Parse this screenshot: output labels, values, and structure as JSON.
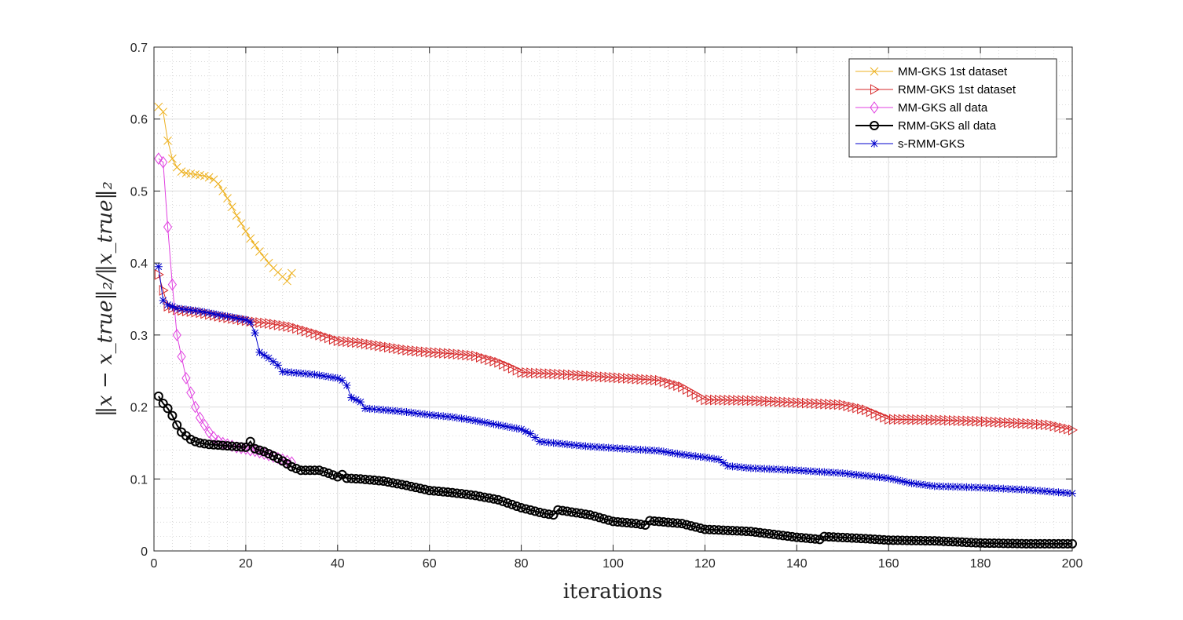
{
  "chart_data": {
    "type": "line",
    "title": "",
    "xlabel": "iterations",
    "ylabel": "‖x − x_true‖₂/‖x_true‖₂",
    "xlim": [
      0,
      200
    ],
    "ylim": [
      0,
      0.7
    ],
    "xticks": [
      "0",
      "20",
      "40",
      "60",
      "80",
      "100",
      "120",
      "140",
      "160",
      "180",
      "200"
    ],
    "yticks": [
      "0",
      "0.1",
      "0.2",
      "0.3",
      "0.4",
      "0.5",
      "0.6",
      "0.7"
    ],
    "grid": true,
    "minor_grid": true,
    "legend_position": "top-right",
    "series": [
      {
        "name": "MM-GKS 1st dataset",
        "color": "#EDB120",
        "marker": "x",
        "points": [
          [
            1,
            0.617
          ],
          [
            2,
            0.61
          ],
          [
            3,
            0.57
          ],
          [
            4,
            0.545
          ],
          [
            5,
            0.533
          ],
          [
            6,
            0.527
          ],
          [
            7,
            0.525
          ],
          [
            8,
            0.524
          ],
          [
            9,
            0.523
          ],
          [
            10,
            0.522
          ],
          [
            11,
            0.521
          ],
          [
            12,
            0.519
          ],
          [
            13,
            0.516
          ],
          [
            14,
            0.51
          ],
          [
            15,
            0.5
          ],
          [
            16,
            0.49
          ],
          [
            17,
            0.478
          ],
          [
            18,
            0.466
          ],
          [
            19,
            0.455
          ],
          [
            20,
            0.444
          ],
          [
            21,
            0.434
          ],
          [
            22,
            0.425
          ],
          [
            23,
            0.416
          ],
          [
            24,
            0.408
          ],
          [
            25,
            0.4
          ],
          [
            26,
            0.393
          ],
          [
            27,
            0.387
          ],
          [
            28,
            0.381
          ],
          [
            29,
            0.375
          ],
          [
            30,
            0.386
          ]
        ]
      },
      {
        "name": "RMM-GKS 1st dataset",
        "color": "#D62728",
        "marker": "triangle-right",
        "points": [
          [
            1,
            0.384
          ],
          [
            3,
            0.34
          ],
          [
            5,
            0.335
          ],
          [
            10,
            0.331
          ],
          [
            15,
            0.325
          ],
          [
            20,
            0.32
          ],
          [
            22,
            0.318
          ],
          [
            25,
            0.316
          ],
          [
            28,
            0.313
          ],
          [
            30,
            0.311
          ],
          [
            35,
            0.302
          ],
          [
            40,
            0.292
          ],
          [
            45,
            0.289
          ],
          [
            50,
            0.284
          ],
          [
            55,
            0.279
          ],
          [
            60,
            0.276
          ],
          [
            65,
            0.274
          ],
          [
            70,
            0.271
          ],
          [
            75,
            0.262
          ],
          [
            78,
            0.254
          ],
          [
            80,
            0.248
          ],
          [
            90,
            0.245
          ],
          [
            100,
            0.241
          ],
          [
            110,
            0.237
          ],
          [
            115,
            0.228
          ],
          [
            120,
            0.21
          ],
          [
            130,
            0.209
          ],
          [
            140,
            0.206
          ],
          [
            150,
            0.203
          ],
          [
            155,
            0.196
          ],
          [
            160,
            0.183
          ],
          [
            170,
            0.182
          ],
          [
            180,
            0.18
          ],
          [
            190,
            0.177
          ],
          [
            195,
            0.175
          ],
          [
            200,
            0.168
          ]
        ]
      },
      {
        "name": "MM-GKS all data",
        "color": "#E040E0",
        "marker": "diamond",
        "points": [
          [
            1,
            0.545
          ],
          [
            2,
            0.54
          ],
          [
            3,
            0.45
          ],
          [
            4,
            0.37
          ],
          [
            5,
            0.3
          ],
          [
            6,
            0.27
          ],
          [
            7,
            0.24
          ],
          [
            8,
            0.22
          ],
          [
            9,
            0.2
          ],
          [
            10,
            0.185
          ],
          [
            11,
            0.175
          ],
          [
            12,
            0.165
          ],
          [
            13,
            0.158
          ],
          [
            14,
            0.153
          ],
          [
            15,
            0.15
          ],
          [
            16,
            0.148
          ],
          [
            17,
            0.146
          ],
          [
            18,
            0.144
          ],
          [
            19,
            0.143
          ],
          [
            20,
            0.142
          ],
          [
            21,
            0.14
          ],
          [
            22,
            0.139
          ],
          [
            23,
            0.137
          ],
          [
            24,
            0.135
          ],
          [
            25,
            0.133
          ],
          [
            26,
            0.131
          ],
          [
            27,
            0.129
          ],
          [
            28,
            0.127
          ],
          [
            29,
            0.125
          ],
          [
            30,
            0.123
          ]
        ]
      },
      {
        "name": "RMM-GKS all data",
        "color": "#000000",
        "marker": "circle",
        "points": [
          [
            1,
            0.215
          ],
          [
            2,
            0.205
          ],
          [
            3,
            0.198
          ],
          [
            4,
            0.188
          ],
          [
            5,
            0.175
          ],
          [
            6,
            0.165
          ],
          [
            7,
            0.16
          ],
          [
            8,
            0.155
          ],
          [
            9,
            0.152
          ],
          [
            10,
            0.15
          ],
          [
            12,
            0.148
          ],
          [
            14,
            0.147
          ],
          [
            16,
            0.146
          ],
          [
            18,
            0.145
          ],
          [
            20,
            0.144
          ],
          [
            21,
            0.152
          ],
          [
            22,
            0.142
          ],
          [
            24,
            0.138
          ],
          [
            26,
            0.132
          ],
          [
            28,
            0.125
          ],
          [
            30,
            0.117
          ],
          [
            32,
            0.112
          ],
          [
            36,
            0.112
          ],
          [
            38,
            0.108
          ],
          [
            40,
            0.103
          ],
          [
            41,
            0.106
          ],
          [
            42,
            0.101
          ],
          [
            45,
            0.1
          ],
          [
            50,
            0.097
          ],
          [
            55,
            0.091
          ],
          [
            60,
            0.084
          ],
          [
            65,
            0.081
          ],
          [
            70,
            0.077
          ],
          [
            75,
            0.071
          ],
          [
            80,
            0.06
          ],
          [
            85,
            0.052
          ],
          [
            87,
            0.05
          ],
          [
            88,
            0.057
          ],
          [
            95,
            0.05
          ],
          [
            100,
            0.041
          ],
          [
            105,
            0.038
          ],
          [
            107,
            0.036
          ],
          [
            108,
            0.042
          ],
          [
            115,
            0.038
          ],
          [
            120,
            0.03
          ],
          [
            130,
            0.027
          ],
          [
            140,
            0.019
          ],
          [
            145,
            0.016
          ],
          [
            146,
            0.02
          ],
          [
            155,
            0.017
          ],
          [
            160,
            0.015
          ],
          [
            170,
            0.014
          ],
          [
            180,
            0.011
          ],
          [
            190,
            0.01
          ],
          [
            200,
            0.01
          ]
        ]
      },
      {
        "name": "s-RMM-GKS",
        "color": "#0000CC",
        "marker": "asterisk",
        "points": [
          [
            1,
            0.395
          ],
          [
            2,
            0.348
          ],
          [
            3,
            0.342
          ],
          [
            5,
            0.337
          ],
          [
            10,
            0.333
          ],
          [
            15,
            0.327
          ],
          [
            20,
            0.321
          ],
          [
            21,
            0.318
          ],
          [
            22,
            0.303
          ],
          [
            23,
            0.276
          ],
          [
            25,
            0.268
          ],
          [
            27,
            0.258
          ],
          [
            28,
            0.249
          ],
          [
            30,
            0.248
          ],
          [
            35,
            0.245
          ],
          [
            40,
            0.24
          ],
          [
            41,
            0.237
          ],
          [
            42,
            0.23
          ],
          [
            43,
            0.213
          ],
          [
            45,
            0.207
          ],
          [
            46,
            0.198
          ],
          [
            50,
            0.196
          ],
          [
            55,
            0.193
          ],
          [
            60,
            0.189
          ],
          [
            65,
            0.186
          ],
          [
            70,
            0.181
          ],
          [
            75,
            0.175
          ],
          [
            80,
            0.169
          ],
          [
            82,
            0.163
          ],
          [
            84,
            0.152
          ],
          [
            90,
            0.148
          ],
          [
            95,
            0.145
          ],
          [
            100,
            0.143
          ],
          [
            110,
            0.139
          ],
          [
            115,
            0.134
          ],
          [
            120,
            0.13
          ],
          [
            123,
            0.127
          ],
          [
            125,
            0.118
          ],
          [
            130,
            0.115
          ],
          [
            140,
            0.112
          ],
          [
            150,
            0.108
          ],
          [
            160,
            0.101
          ],
          [
            165,
            0.094
          ],
          [
            170,
            0.09
          ],
          [
            180,
            0.088
          ],
          [
            190,
            0.085
          ],
          [
            200,
            0.08
          ]
        ]
      }
    ]
  }
}
